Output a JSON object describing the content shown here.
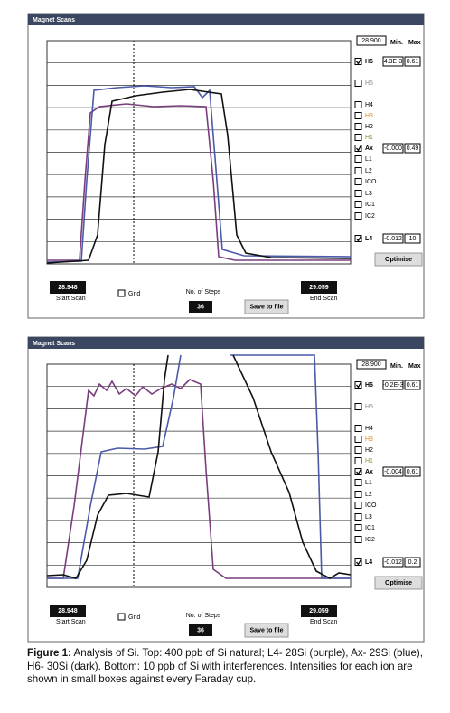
{
  "panels": [
    {
      "title": "Magnet Scans",
      "field": "28.900",
      "min_header": "Min.",
      "max_header": "Max",
      "detectors": [
        {
          "label": "H6",
          "checked": true,
          "min": "4.3E-3",
          "max": "0.61"
        },
        {
          "label": "H5",
          "checked": false,
          "color": "#888888"
        },
        {
          "label": "H4",
          "checked": false
        },
        {
          "label": "H3",
          "checked": false,
          "color": "#d98a1c"
        },
        {
          "label": "H2",
          "checked": false
        },
        {
          "label": "H1",
          "checked": false,
          "color": "#7a9a3a"
        },
        {
          "label": "Ax",
          "checked": true,
          "min": "-0.000",
          "max": "0.49"
        },
        {
          "label": "L1",
          "checked": false
        },
        {
          "label": "L2",
          "checked": false
        },
        {
          "label": "ICO",
          "checked": false
        },
        {
          "label": "L3",
          "checked": false
        },
        {
          "label": "IC1",
          "checked": false
        },
        {
          "label": "IC2",
          "checked": false
        },
        {
          "label": "L4",
          "checked": true,
          "min": "-0.012",
          "max": "10"
        }
      ],
      "optimise": "Optimise",
      "start_value": "28.948",
      "start_label": "Start Scan",
      "grid_label": "Grid",
      "steps_label": "No. of Steps",
      "steps": "36",
      "save": "Save to file",
      "end_value": "29.059",
      "end_label": "End Scan"
    },
    {
      "title": "Magnet Scans",
      "field": "28.900",
      "min_header": "Min.",
      "max_header": "Max",
      "detectors": [
        {
          "label": "H6",
          "checked": true,
          "min": "-0.2E-3",
          "max": "0.61"
        },
        {
          "label": "H5",
          "checked": false,
          "color": "#888888"
        },
        {
          "label": "H4",
          "checked": false
        },
        {
          "label": "H3",
          "checked": false,
          "color": "#d98a1c"
        },
        {
          "label": "H2",
          "checked": false
        },
        {
          "label": "H1",
          "checked": false,
          "color": "#7a9a3a"
        },
        {
          "label": "Ax",
          "checked": true,
          "min": "-0.004",
          "max": "0.61"
        },
        {
          "label": "L1",
          "checked": false
        },
        {
          "label": "L2",
          "checked": false
        },
        {
          "label": "ICO",
          "checked": false
        },
        {
          "label": "L3",
          "checked": false
        },
        {
          "label": "IC1",
          "checked": false
        },
        {
          "label": "IC2",
          "checked": false
        },
        {
          "label": "L4",
          "checked": true,
          "min": "-0.012",
          "max": "0.2"
        }
      ],
      "optimise": "Optimise",
      "start_value": "28.948",
      "start_label": "Start Scan",
      "grid_label": "Grid",
      "steps_label": "No. of Steps",
      "steps": "36",
      "save": "Save to file",
      "end_value": "29.059",
      "end_label": "End Scan"
    }
  ],
  "caption": {
    "label": "Figure 1:",
    "text": " Analysis of Si. Top: 400 ppb of Si natural; L4- 28Si (purple), Ax- 29Si (blue), H6- 30Si (dark). Bottom: 10 ppb of Si with interferences. Intensities for each ion are shown in small boxes against every Faraday cup."
  }
}
